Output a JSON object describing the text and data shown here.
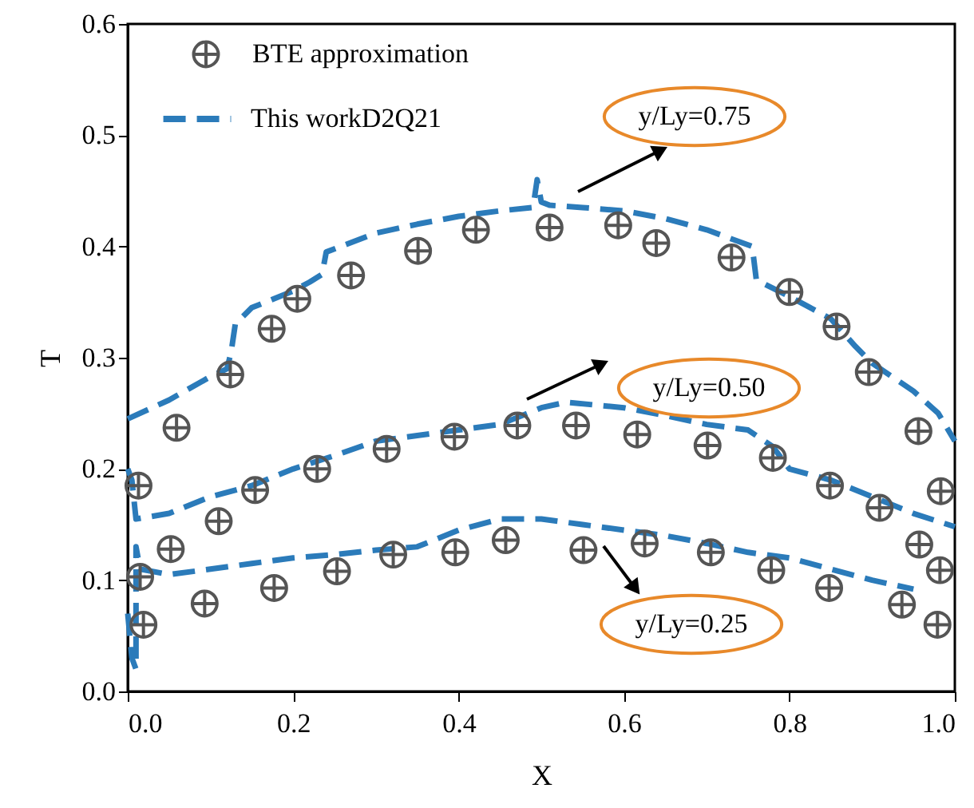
{
  "chart_data": {
    "type": "scatter",
    "xlabel": "X",
    "ylabel": "T",
    "xlim": [
      0,
      1
    ],
    "ylim": [
      0,
      0.6
    ],
    "xticks": [
      {
        "value": 0,
        "label": "0.0"
      },
      0.2,
      0.4,
      0.6,
      0.8,
      {
        "value": 1,
        "label": "1.0"
      }
    ],
    "yticks": [
      {
        "value": 0,
        "label": "0.0"
      },
      0.1,
      0.2,
      0.3,
      0.4,
      0.5,
      0.6
    ],
    "grid": false,
    "legend": "top left",
    "series": [
      {
        "name": "BTE approximation",
        "marker": "cross",
        "color": "#555555",
        "x": [
          0.013,
          0.059,
          0.124,
          0.174,
          0.205,
          0.27,
          0.351,
          0.421,
          0.51,
          0.593,
          0.639,
          0.73,
          0.8,
          0.857,
          0.896,
          0.956,
          0.983
        ],
        "values": [
          0.185,
          0.237,
          0.285,
          0.326,
          0.353,
          0.374,
          0.396,
          0.415,
          0.417,
          0.419,
          0.403,
          0.39,
          0.359,
          0.328,
          0.287,
          0.234,
          0.18
        ]
      },
      {
        "marker": "cross",
        "color": "#555555",
        "x": [
          0.015,
          0.052,
          0.11,
          0.154,
          0.229,
          0.313,
          0.395,
          0.471,
          0.542,
          0.616,
          0.701,
          0.78,
          0.849,
          0.909,
          0.957,
          0.982
        ],
        "values": [
          0.103,
          0.128,
          0.153,
          0.181,
          0.2,
          0.218,
          0.229,
          0.239,
          0.239,
          0.231,
          0.221,
          0.21,
          0.185,
          0.165,
          0.132,
          0.109
        ]
      },
      {
        "marker": "cross",
        "color": "#555555",
        "x": [
          0.019,
          0.093,
          0.177,
          0.253,
          0.321,
          0.396,
          0.457,
          0.551,
          0.625,
          0.705,
          0.778,
          0.848,
          0.936,
          0.979
        ],
        "values": [
          0.06,
          0.079,
          0.093,
          0.108,
          0.123,
          0.125,
          0.136,
          0.127,
          0.133,
          0.125,
          0.109,
          0.093,
          0.078,
          0.06
        ]
      },
      {
        "name": "This workD2Q21",
        "type": "line",
        "line_style": "dashed",
        "color": "#2b7bba",
        "x": [
          0,
          0.05,
          0.1,
          0.12,
          0.125,
          0.13,
          0.15,
          0.2,
          0.22,
          0.235,
          0.24,
          0.3,
          0.35,
          0.4,
          0.45,
          0.49,
          0.495,
          0.5,
          0.51,
          0.55,
          0.6,
          0.65,
          0.7,
          0.755,
          0.76,
          0.8,
          0.85,
          0.88,
          0.9,
          0.95,
          0.98,
          1.0
        ],
        "values": [
          0.245,
          0.262,
          0.283,
          0.29,
          0.305,
          0.33,
          0.345,
          0.36,
          0.368,
          0.375,
          0.395,
          0.412,
          0.42,
          0.427,
          0.432,
          0.435,
          0.46,
          0.44,
          0.437,
          0.435,
          0.432,
          0.425,
          0.415,
          0.4,
          0.37,
          0.355,
          0.335,
          0.31,
          0.295,
          0.27,
          0.25,
          0.225
        ]
      },
      {
        "type": "line",
        "line_style": "dashed",
        "color": "#2b7bba",
        "x": [
          0,
          0.005,
          0.01,
          0.05,
          0.1,
          0.15,
          0.2,
          0.25,
          0.3,
          0.35,
          0.4,
          0.45,
          0.5,
          0.53,
          0.6,
          0.65,
          0.7,
          0.75,
          0.78,
          0.8,
          0.85,
          0.9,
          0.95,
          1.0
        ],
        "values": [
          0.2,
          0.19,
          0.155,
          0.16,
          0.175,
          0.185,
          0.2,
          0.212,
          0.225,
          0.23,
          0.235,
          0.24,
          0.255,
          0.26,
          0.255,
          0.248,
          0.24,
          0.235,
          0.22,
          0.2,
          0.19,
          0.175,
          0.16,
          0.148
        ]
      },
      {
        "type": "line",
        "line_style": "dashed",
        "color": "#2b7bba",
        "x": [
          0,
          0.005,
          0.01,
          0.01,
          0.015,
          0.05,
          0.1,
          0.15,
          0.2,
          0.25,
          0.3,
          0.35,
          0.4,
          0.45,
          0.5,
          0.55,
          0.6,
          0.65,
          0.7,
          0.75,
          0.8,
          0.85,
          0.9,
          0.95
        ],
        "values": [
          0.07,
          0.03,
          0.02,
          0.13,
          0.11,
          0.105,
          0.11,
          0.115,
          0.12,
          0.123,
          0.127,
          0.13,
          0.145,
          0.155,
          0.155,
          0.15,
          0.145,
          0.14,
          0.133,
          0.125,
          0.12,
          0.11,
          0.1,
          0.092
        ]
      }
    ],
    "annotations": [
      "y/Ly=0.75",
      "y/Ly=0.50",
      "y/Ly=0.25"
    ]
  }
}
